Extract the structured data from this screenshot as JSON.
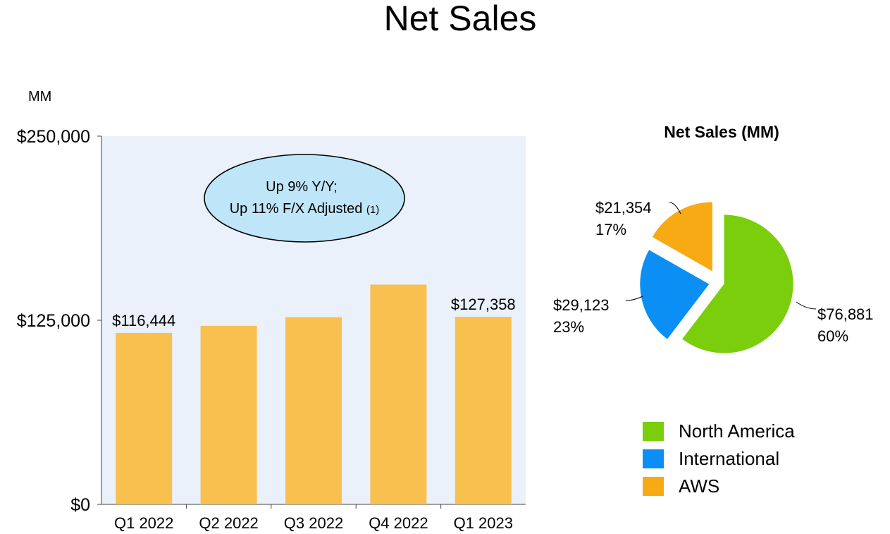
{
  "title": "Net Sales",
  "unit_label": "MM",
  "colors": {
    "plot_bg": "#eaf1fb",
    "bar": "#f8c04f",
    "north_america": "#7ace0b",
    "international": "#0b8ff5",
    "aws": "#f8aa14",
    "callout_fill": "#bfe6f8"
  },
  "callout": {
    "line1": "Up 9% Y/Y;",
    "line2": "Up 11% F/X Adjusted",
    "footnote": "(1)"
  },
  "chart_data": [
    {
      "type": "bar",
      "categories": [
        "Q1 2022",
        "Q2 2022",
        "Q3 2022",
        "Q4 2022",
        "Q1 2023"
      ],
      "values": [
        116444,
        121234,
        127101,
        149204,
        127358
      ],
      "data_labels": [
        "$116,444",
        "",
        "",
        "",
        "$127,358"
      ],
      "ylim": [
        0,
        250000
      ],
      "yticks": [
        0,
        125000,
        250000
      ],
      "ytick_labels": [
        "$0",
        "$125,000",
        "$250,000"
      ],
      "ylabel": "MM"
    },
    {
      "type": "pie",
      "title": "Net Sales (MM)",
      "slices": [
        {
          "name": "North America",
          "value": 76881,
          "value_label": "$76,881",
          "pct_label": "60%",
          "color_key": "north_america"
        },
        {
          "name": "International",
          "value": 29123,
          "value_label": "$29,123",
          "pct_label": "23%",
          "color_key": "international"
        },
        {
          "name": "AWS",
          "value": 21354,
          "value_label": "$21,354",
          "pct_label": "17%",
          "color_key": "aws"
        }
      ]
    }
  ]
}
